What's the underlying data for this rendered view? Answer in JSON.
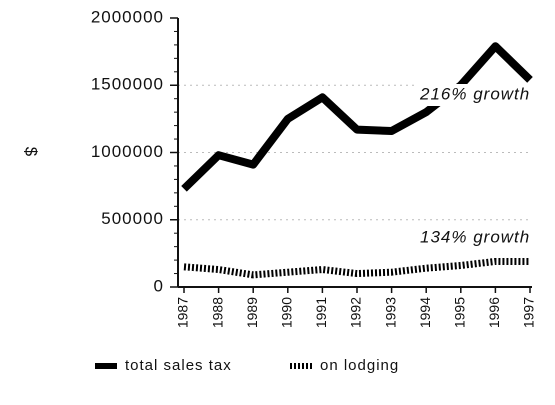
{
  "chart_data": {
    "type": "line",
    "y_label": "$",
    "categories": [
      "1987",
      "1988",
      "1989",
      "1990",
      "1991",
      "1992",
      "1993",
      "1994",
      "1995",
      "1996",
      "1997"
    ],
    "series": [
      {
        "name": "total sales tax",
        "color": "#000000",
        "style": "solid",
        "values": [
          730000,
          980000,
          910000,
          1250000,
          1410000,
          1170000,
          1160000,
          1300000,
          1500000,
          1790000,
          1540000
        ]
      },
      {
        "name": "on lodging",
        "color": "#000000",
        "style": "dotted",
        "values": [
          150000,
          130000,
          90000,
          110000,
          130000,
          100000,
          110000,
          140000,
          160000,
          190000,
          190000
        ]
      }
    ],
    "ylim": [
      0,
      2000000
    ],
    "yticks": [
      0,
      500000,
      1000000,
      1500000,
      2000000
    ],
    "grid": true,
    "annotations": [
      "216% growth",
      "134% growth"
    ]
  }
}
